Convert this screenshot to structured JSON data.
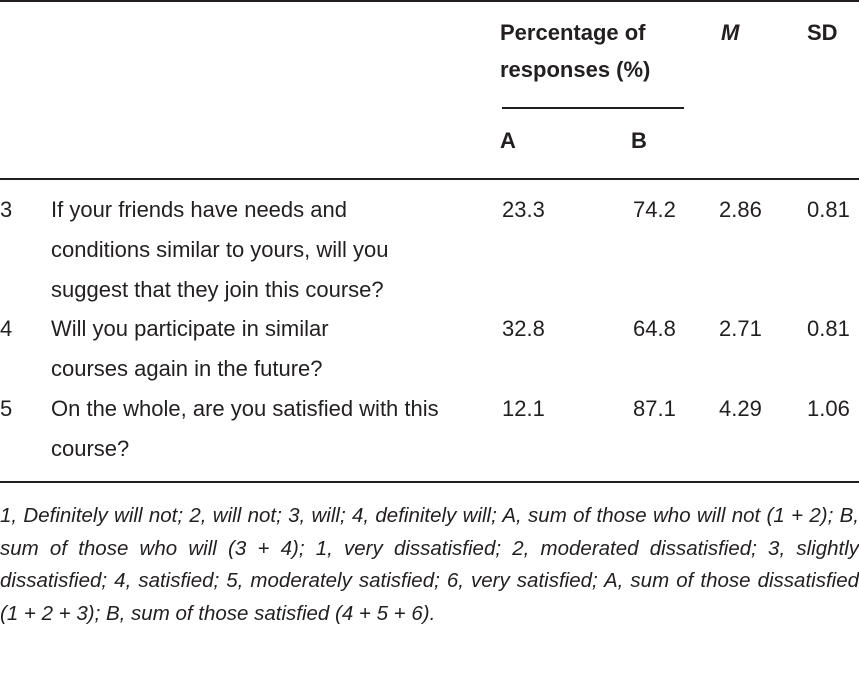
{
  "header": {
    "percentage": "Percentage of responses (%)",
    "mean": "M",
    "sd": "SD",
    "col_a": "A",
    "col_b": "B"
  },
  "rows": [
    {
      "num": "3",
      "question": "If your friends have needs and conditions similar to yours, will you suggest that they join this course?",
      "a": "23.3",
      "b": "74.2",
      "m": "2.86",
      "sd": "0.81"
    },
    {
      "num": "4",
      "question": "Will you participate in similar courses again in the future?",
      "a": "32.8",
      "b": "64.8",
      "m": "2.71",
      "sd": "0.81"
    },
    {
      "num": "5",
      "question": "On the whole, are you satisfied with this course?",
      "a": "12.1",
      "b": "87.1",
      "m": "4.29",
      "sd": "1.06"
    }
  ],
  "footnote": "1, Definitely will not; 2, will not; 3, will; 4, definitely will; A, sum of those who will not (1 + 2); B, sum of those who will (3 + 4); 1, very dissatisfied; 2, moder­ated dissatisfied; 3, slightly dissatisfied; 4, satisfied; 5, moderately satisfied; 6, very satisfied; A, sum of those dissatisfied (1 + 2 + 3); B, sum of those satisfied (4 + 5 + 6)."
}
